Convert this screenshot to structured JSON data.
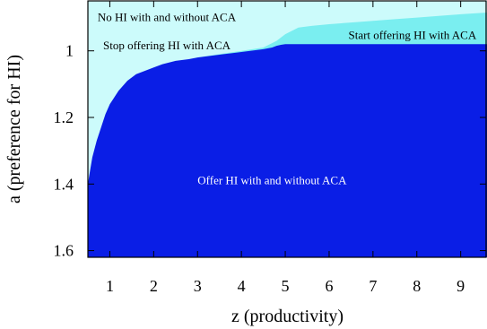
{
  "chart_data": {
    "type": "heatmap",
    "xlabel": "z (productivity)",
    "ylabel": "a (preference for HI)",
    "xlim": [
      0.5,
      9.6
    ],
    "ylim": [
      0.85,
      1.62
    ],
    "y_inverted": true,
    "xticks": [
      1,
      2,
      3,
      4,
      5,
      6,
      7,
      8,
      9
    ],
    "yticks": [
      1,
      1.2,
      1.4,
      1.6
    ],
    "ytick_labels": [
      "1",
      "1.2",
      "1.4",
      "1.6"
    ],
    "grid": false,
    "colors": {
      "offer_both": "#0a1ee6",
      "no_hi": "#ccfbfb",
      "switch_region": "#7aeef0"
    },
    "boundaries": {
      "offer_upper_edge": {
        "description_units": "a value of top edge of dark region at each z",
        "z": [
          0.5,
          0.55,
          0.6,
          0.7,
          0.8,
          0.9,
          1.0,
          1.2,
          1.4,
          1.6,
          1.8,
          2.0,
          2.2,
          2.5,
          2.8,
          3.0,
          3.3,
          3.6,
          3.9,
          4.2,
          4.5,
          4.7,
          4.8,
          4.9,
          5.0,
          5.5,
          6.0,
          7.0,
          8.0,
          9.0,
          9.6
        ],
        "a": [
          1.4,
          1.36,
          1.32,
          1.27,
          1.23,
          1.19,
          1.16,
          1.12,
          1.09,
          1.07,
          1.06,
          1.05,
          1.04,
          1.03,
          1.025,
          1.02,
          1.015,
          1.01,
          1.005,
          1.0,
          0.995,
          0.99,
          0.985,
          0.982,
          0.98,
          0.98,
          0.98,
          0.98,
          0.98,
          0.98,
          0.98
        ]
      },
      "switch_region_upper_edge": {
        "z": [
          2.7,
          3.0,
          3.5,
          4.0,
          4.5,
          4.8,
          5.0,
          5.3,
          5.6,
          6.0,
          6.5,
          7.0,
          7.5,
          8.0,
          8.5,
          9.0,
          9.6
        ],
        "a": [
          1.03,
          1.02,
          1.01,
          1.0,
          0.99,
          0.97,
          0.95,
          0.93,
          0.925,
          0.92,
          0.915,
          0.91,
          0.905,
          0.9,
          0.895,
          0.89,
          0.885
        ]
      }
    },
    "annotations": [
      {
        "text": "No HI with and without ACA",
        "z": 2.3,
        "a": 0.9
      },
      {
        "text": "Stop offering HI with ACA",
        "z": 2.3,
        "a": 0.985
      },
      {
        "text": "Start offering HI with ACA",
        "z": 7.9,
        "a": 0.953
      },
      {
        "text": "Offer HI with and without ACA",
        "z": 4.7,
        "a": 1.39
      }
    ]
  }
}
